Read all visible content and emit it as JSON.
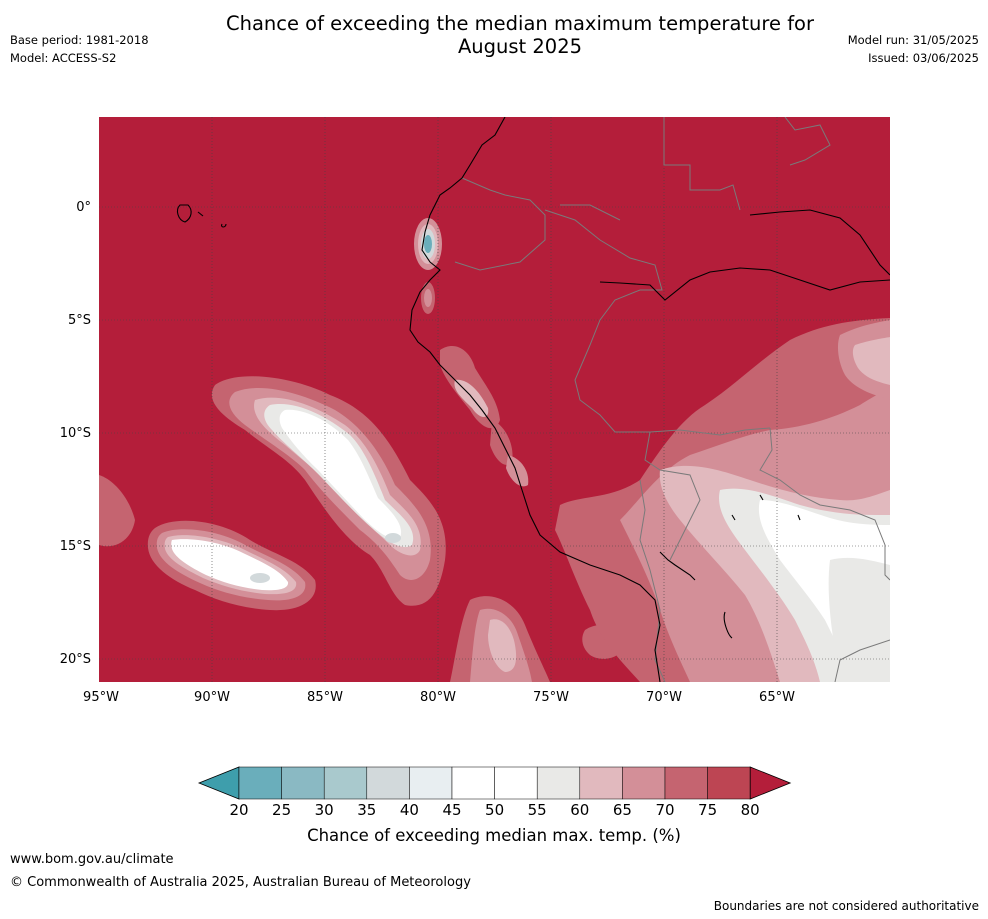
{
  "header": {
    "title": "Chance of exceeding the median maximum temperature for\nAugust 2025",
    "base_period": "Base period: 1981-2018",
    "model": "Model: ACCESS-S2",
    "model_run": "Model run: 31/05/2025",
    "issued": "Issued: 03/06/2025"
  },
  "map": {
    "lat_labels": [
      "0°",
      "5°S",
      "10°S",
      "15°S",
      "20°S"
    ],
    "lon_labels": [
      "95°W",
      "90°W",
      "85°W",
      "80°W",
      "75°W",
      "70°W",
      "65°W"
    ],
    "background_color": "#b41e3a"
  },
  "colorbar": {
    "tick_labels": [
      "20",
      "25",
      "30",
      "35",
      "40",
      "45",
      "50",
      "55",
      "60",
      "65",
      "70",
      "75",
      "80"
    ],
    "colors": [
      "#3e9eac",
      "#6aaebb",
      "#8ab9c3",
      "#a9c9cd",
      "#d2d9db",
      "#e8eef1",
      "#ffffff",
      "#ffffff",
      "#e9e9e7",
      "#e1b9be",
      "#d38f98",
      "#c56470",
      "#bd4553",
      "#b41e3a"
    ],
    "label": "Chance of exceeding median max. temp. (%)"
  },
  "footer": {
    "url": "www.bom.gov.au/climate",
    "copyright": "© Commonwealth of Australia 2025, Australian Bureau of Meteorology",
    "disclaimer": "Boundaries are not considered authoritative"
  }
}
